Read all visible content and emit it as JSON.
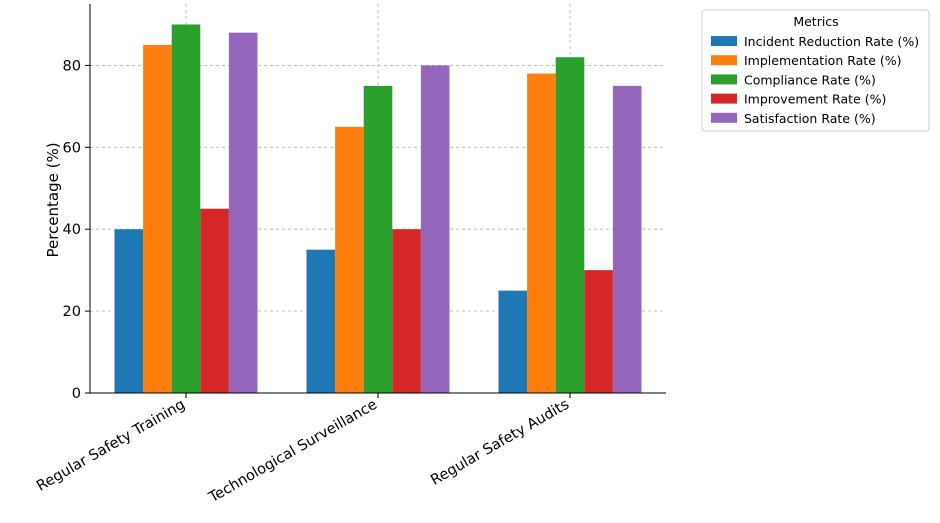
{
  "chart_data": {
    "type": "bar",
    "title": "",
    "xlabel": "",
    "ylabel": "Percentage (%)",
    "ylim": [
      0,
      95
    ],
    "yticks": [
      0,
      20,
      40,
      60,
      80
    ],
    "grid": true,
    "legend_title": "Metrics",
    "legend_position": "outside-top-right",
    "categories": [
      "Regular Safety Training",
      "Technological Surveillance",
      "Regular Safety Audits"
    ],
    "series": [
      {
        "name": "Incident Reduction Rate (%)",
        "color": "#1f77b4",
        "values": [
          40,
          35,
          25
        ]
      },
      {
        "name": "Implementation Rate (%)",
        "color": "#ff7f0e",
        "values": [
          85,
          65,
          78
        ]
      },
      {
        "name": "Compliance Rate (%)",
        "color": "#2ca02c",
        "values": [
          90,
          75,
          82
        ]
      },
      {
        "name": "Improvement Rate (%)",
        "color": "#d62728",
        "values": [
          45,
          40,
          30
        ]
      },
      {
        "name": "Satisfaction Rate (%)",
        "color": "#9467bd",
        "values": [
          88,
          80,
          75
        ]
      }
    ]
  }
}
